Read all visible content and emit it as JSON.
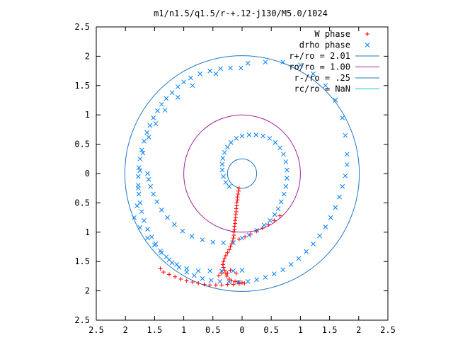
{
  "chart_data": {
    "type": "scatter",
    "title": "m1/n1.5/q1.5/r-+.12-j130/M5.0/1024",
    "xlim": [
      -2.5,
      2.5
    ],
    "ylim": [
      -2.5,
      2.5
    ],
    "x_ticks": [
      {
        "value": -2.5,
        "label": "2.5"
      },
      {
        "value": -2,
        "label": "2"
      },
      {
        "value": -1.5,
        "label": "1.5"
      },
      {
        "value": -1,
        "label": "1"
      },
      {
        "value": -0.5,
        "label": "0.5"
      },
      {
        "value": 0,
        "label": "0"
      },
      {
        "value": 0.5,
        "label": "0.5"
      },
      {
        "value": 1,
        "label": "1"
      },
      {
        "value": 1.5,
        "label": "1.5"
      },
      {
        "value": 2,
        "label": "2"
      },
      {
        "value": 2.5,
        "label": "2.5"
      }
    ],
    "y_ticks": [
      {
        "value": 2.5,
        "label": "2.5"
      },
      {
        "value": 2,
        "label": "2"
      },
      {
        "value": 1.5,
        "label": "1.5"
      },
      {
        "value": 1,
        "label": "1"
      },
      {
        "value": 0.5,
        "label": "0.5"
      },
      {
        "value": 0,
        "label": "0"
      },
      {
        "value": -0.5,
        "label": "0.5"
      },
      {
        "value": -1,
        "label": "1"
      },
      {
        "value": -1.5,
        "label": "1.5"
      },
      {
        "value": -2,
        "label": "2"
      },
      {
        "value": -2.5,
        "label": "2.5"
      }
    ],
    "grid": false,
    "legend_position": "top-right",
    "legend": [
      {
        "label": "W phase",
        "kind": "point",
        "marker": "+",
        "color": "#ff0000"
      },
      {
        "label": "drho phase",
        "kind": "point",
        "marker": "x",
        "color": "#0080ff"
      },
      {
        "label": "r+/ro = 2.01",
        "kind": "line",
        "color": "#1f78c8"
      },
      {
        "label": "ro/ro = 1.00",
        "kind": "line",
        "color": "#a020a0"
      },
      {
        "label": "r-/ro = .25",
        "kind": "line",
        "color": "#1f78c8"
      },
      {
        "label": "rc/ro = NaN",
        "kind": "line",
        "color": "#00c8c8"
      }
    ],
    "circles": [
      {
        "name": "r+/ro = 2.01",
        "r": 2.01,
        "color": "#1f78c8"
      },
      {
        "name": "ro/ro = 1.00",
        "r": 1.0,
        "color": "#a020a0"
      },
      {
        "name": "r-/ro = .25",
        "r": 0.25,
        "color": "#1f78c8"
      }
    ],
    "series": [
      {
        "name": "W phase",
        "marker": "+",
        "color": "#ff0000",
        "points": [
          [
            -0.05,
            -0.25
          ],
          [
            -0.06,
            -0.3
          ],
          [
            -0.07,
            -0.35
          ],
          [
            -0.08,
            -0.4
          ],
          [
            -0.08,
            -0.45
          ],
          [
            -0.09,
            -0.5
          ],
          [
            -0.09,
            -0.55
          ],
          [
            -0.1,
            -0.6
          ],
          [
            -0.1,
            -0.65
          ],
          [
            -0.11,
            -0.7
          ],
          [
            -0.11,
            -0.75
          ],
          [
            -0.12,
            -0.8
          ],
          [
            -0.12,
            -0.85
          ],
          [
            -0.13,
            -0.9
          ],
          [
            -0.13,
            -0.95
          ],
          [
            -0.14,
            -1.0
          ],
          [
            -0.14,
            -1.05
          ],
          [
            -0.15,
            -1.1
          ],
          [
            -0.16,
            -1.15
          ],
          [
            -0.18,
            -1.2
          ],
          [
            -0.2,
            -1.25
          ],
          [
            -0.22,
            -1.3
          ],
          [
            -0.25,
            -1.35
          ],
          [
            -0.28,
            -1.4
          ],
          [
            -0.3,
            -1.45
          ],
          [
            -0.32,
            -1.5
          ],
          [
            -0.33,
            -1.55
          ],
          [
            -0.32,
            -1.6
          ],
          [
            -0.3,
            -1.65
          ],
          [
            -0.28,
            -1.7
          ],
          [
            -0.26,
            -1.75
          ],
          [
            -0.22,
            -1.8
          ],
          [
            -0.18,
            -1.83
          ],
          [
            -0.12,
            -1.84
          ],
          [
            -0.06,
            -1.85
          ],
          [
            0.0,
            -1.86
          ],
          [
            0.04,
            -1.87
          ],
          [
            -0.05,
            -1.88
          ],
          [
            -0.15,
            -1.89
          ],
          [
            -0.25,
            -1.89
          ],
          [
            -0.35,
            -1.9
          ],
          [
            -0.45,
            -1.9
          ],
          [
            -0.55,
            -1.9
          ],
          [
            -0.65,
            -1.89
          ],
          [
            -0.75,
            -1.87
          ],
          [
            -0.85,
            -1.85
          ],
          [
            -0.95,
            -1.83
          ],
          [
            -1.05,
            -1.8
          ],
          [
            -1.15,
            -1.76
          ],
          [
            -1.25,
            -1.72
          ],
          [
            -1.35,
            -1.68
          ],
          [
            -1.4,
            -1.62
          ],
          [
            -0.35,
            -1.7
          ],
          [
            -0.25,
            -1.7
          ],
          [
            -0.2,
            -1.65
          ],
          [
            -0.1,
            -1.7
          ],
          [
            -0.4,
            -1.74
          ],
          [
            -0.05,
            -1.12
          ],
          [
            0.05,
            -1.08
          ],
          [
            0.15,
            -1.03
          ],
          [
            0.25,
            -0.98
          ],
          [
            0.35,
            -0.93
          ],
          [
            0.45,
            -0.87
          ],
          [
            0.55,
            -0.8
          ],
          [
            0.65,
            -0.72
          ]
        ]
      },
      {
        "name": "drho phase",
        "marker": "x",
        "color": "#0080ff",
        "points": [
          [
            -0.02,
            1.8
          ],
          [
            -0.2,
            1.8
          ],
          [
            -0.37,
            1.79
          ],
          [
            -0.55,
            1.75
          ],
          [
            -0.72,
            1.7
          ],
          [
            -0.88,
            1.63
          ],
          [
            -1.0,
            1.56
          ],
          [
            -1.1,
            1.48
          ],
          [
            -1.2,
            1.38
          ],
          [
            -1.3,
            1.28
          ],
          [
            -1.38,
            1.18
          ],
          [
            -1.45,
            1.07
          ],
          [
            -1.52,
            0.95
          ],
          [
            -1.58,
            0.82
          ],
          [
            -1.63,
            0.7
          ],
          [
            -1.68,
            0.55
          ],
          [
            -1.72,
            0.4
          ],
          [
            -1.75,
            0.25
          ],
          [
            -1.77,
            0.1
          ],
          [
            -1.78,
            -0.05
          ],
          [
            -1.78,
            -0.2
          ],
          [
            -1.77,
            -0.35
          ],
          [
            -1.75,
            -0.5
          ],
          [
            -1.72,
            -0.65
          ],
          [
            -1.68,
            -0.8
          ],
          [
            -1.62,
            -0.95
          ],
          [
            -1.55,
            -1.08
          ],
          [
            -1.48,
            -1.2
          ],
          [
            -1.4,
            -1.32
          ],
          [
            -1.3,
            -1.42
          ],
          [
            -1.2,
            -1.52
          ],
          [
            -1.08,
            -1.6
          ],
          [
            -0.95,
            -1.68
          ],
          [
            -0.82,
            -1.74
          ],
          [
            -0.68,
            -1.79
          ],
          [
            -0.53,
            -1.82
          ],
          [
            -0.38,
            -1.84
          ],
          [
            -0.22,
            -1.85
          ],
          [
            -0.06,
            -1.85
          ],
          [
            0.1,
            -1.84
          ],
          [
            0.25,
            -1.81
          ],
          [
            0.4,
            -1.77
          ],
          [
            0.55,
            -1.71
          ],
          [
            0.7,
            -1.64
          ],
          [
            0.84,
            -1.55
          ],
          [
            0.97,
            -1.45
          ],
          [
            1.1,
            -1.33
          ],
          [
            1.22,
            -1.2
          ],
          [
            1.33,
            -1.06
          ],
          [
            1.43,
            -0.91
          ],
          [
            1.52,
            -0.75
          ],
          [
            1.6,
            -0.58
          ],
          [
            1.67,
            -0.4
          ],
          [
            1.72,
            -0.22
          ],
          [
            1.77,
            -0.04
          ],
          [
            1.8,
            0.15
          ],
          [
            1.8,
            0.33
          ],
          [
            1.77,
            0.65
          ],
          [
            1.72,
            0.95
          ],
          [
            1.6,
            1.25
          ],
          [
            1.43,
            1.5
          ],
          [
            1.22,
            1.7
          ],
          [
            1.0,
            1.85
          ],
          [
            0.7,
            1.9
          ],
          [
            0.4,
            1.9
          ],
          [
            0.1,
            1.88
          ],
          [
            -0.45,
            1.7
          ],
          [
            -0.85,
            1.5
          ],
          [
            -1.1,
            1.3
          ],
          [
            -1.32,
            1.08
          ],
          [
            -1.48,
            0.85
          ],
          [
            -1.6,
            0.62
          ],
          [
            -1.7,
            0.35
          ],
          [
            -1.75,
            0.05
          ],
          [
            -1.78,
            -0.25
          ],
          [
            -1.8,
            -0.55
          ],
          [
            -1.85,
            -0.75
          ],
          [
            -1.75,
            -0.92
          ],
          [
            -1.62,
            -1.1
          ],
          [
            -1.5,
            -1.22
          ],
          [
            -1.38,
            -1.35
          ],
          [
            -1.25,
            -1.47
          ],
          [
            -1.12,
            -1.55
          ],
          [
            -0.95,
            -1.62
          ],
          [
            -0.75,
            -1.66
          ],
          [
            -0.55,
            -1.66
          ],
          [
            -0.35,
            -1.66
          ],
          [
            -0.15,
            -1.66
          ],
          [
            0.0,
            -1.65
          ],
          [
            -1.62,
            0.0
          ],
          [
            -1.6,
            -0.1
          ],
          [
            -1.57,
            -0.22
          ],
          [
            -1.52,
            -0.35
          ],
          [
            -1.46,
            -0.48
          ],
          [
            -1.38,
            -0.62
          ],
          [
            -1.28,
            -0.75
          ],
          [
            -1.16,
            -0.87
          ],
          [
            -1.02,
            -0.98
          ],
          [
            -0.86,
            -1.07
          ],
          [
            -0.68,
            -1.13
          ],
          [
            -0.5,
            -1.17
          ],
          [
            -0.32,
            -1.18
          ],
          [
            -0.15,
            -1.18
          ],
          [
            0.0,
            -1.1
          ],
          [
            0.12,
            -1.05
          ],
          [
            0.25,
            -0.97
          ],
          [
            0.38,
            -0.88
          ],
          [
            0.48,
            -0.8
          ],
          [
            0.56,
            -0.7
          ],
          [
            0.62,
            -0.6
          ],
          [
            0.67,
            -0.48
          ],
          [
            0.72,
            -0.35
          ],
          [
            0.75,
            -0.22
          ],
          [
            0.77,
            -0.08
          ],
          [
            0.77,
            0.06
          ],
          [
            0.75,
            0.2
          ],
          [
            0.71,
            0.33
          ],
          [
            0.65,
            0.44
          ],
          [
            0.57,
            0.53
          ],
          [
            0.47,
            0.6
          ],
          [
            0.36,
            0.64
          ],
          [
            0.24,
            0.66
          ],
          [
            0.12,
            0.66
          ],
          [
            0.0,
            0.64
          ],
          [
            -0.1,
            0.6
          ],
          [
            -0.19,
            0.53
          ],
          [
            -0.25,
            0.45
          ],
          [
            -0.3,
            0.36
          ],
          [
            -0.33,
            0.26
          ],
          [
            -0.34,
            0.16
          ],
          [
            -0.34,
            0.06
          ],
          [
            -0.32,
            -0.05
          ],
          [
            -0.28,
            -0.15
          ],
          [
            -0.22,
            -0.22
          ]
        ]
      }
    ]
  }
}
